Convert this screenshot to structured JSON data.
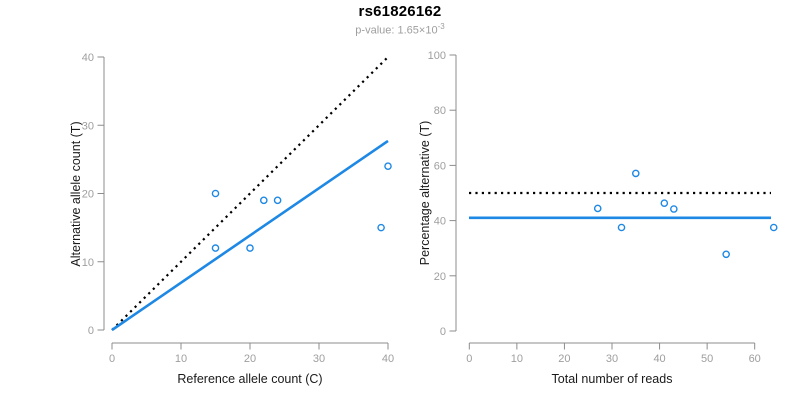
{
  "header": {
    "title": "rs61826162",
    "p_value_text": "p-value: 1.65×10",
    "p_value_exponent": "-3"
  },
  "colors": {
    "accent_blue": "#1E88E5",
    "axis_gray": "#8C8C8C",
    "tick_label_gray": "#9E9E9E",
    "line_black": "#000000"
  },
  "chart_data": [
    {
      "type": "scatter",
      "panel": "left",
      "xlabel": "Reference allele count (C)",
      "ylabel": "Alternative allele count (T)",
      "xlim": [
        0,
        40
      ],
      "ylim": [
        0,
        40
      ],
      "xticks": [
        0,
        10,
        20,
        30,
        40
      ],
      "yticks": [
        0,
        10,
        20,
        30,
        40
      ],
      "grid": false,
      "points": [
        [
          15,
          12
        ],
        [
          15,
          20
        ],
        [
          20,
          12
        ],
        [
          22,
          19
        ],
        [
          24,
          19
        ],
        [
          39,
          15
        ],
        [
          40,
          24
        ]
      ],
      "lines": [
        {
          "name": "identity-line",
          "style": "dotted",
          "color": "#000000",
          "from": [
            0,
            0
          ],
          "to": [
            40,
            40
          ]
        },
        {
          "name": "fit-line",
          "style": "solid",
          "color": "#1E88E5",
          "from": [
            0,
            0
          ],
          "to": [
            40,
            27.7
          ]
        }
      ]
    },
    {
      "type": "scatter",
      "panel": "right",
      "xlabel": "Total number of reads",
      "ylabel": "Percentage alternative (T)",
      "xlim": [
        0,
        60
      ],
      "ylim": [
        0,
        100
      ],
      "xticks": [
        0,
        10,
        20,
        30,
        40,
        50,
        60
      ],
      "yticks": [
        0,
        20,
        40,
        60,
        80,
        100
      ],
      "grid": false,
      "points": [
        [
          27,
          44.4
        ],
        [
          32,
          37.5
        ],
        [
          35,
          57.1
        ],
        [
          41,
          46.3
        ],
        [
          43,
          44.2
        ],
        [
          54,
          27.8
        ],
        [
          64,
          37.5
        ]
      ],
      "lines": [
        {
          "name": "fifty-percent-line",
          "style": "dotted",
          "color": "#000000",
          "y": 50
        },
        {
          "name": "mean-alt-percentage-line",
          "style": "solid",
          "color": "#1E88E5",
          "y": 41
        }
      ]
    }
  ]
}
